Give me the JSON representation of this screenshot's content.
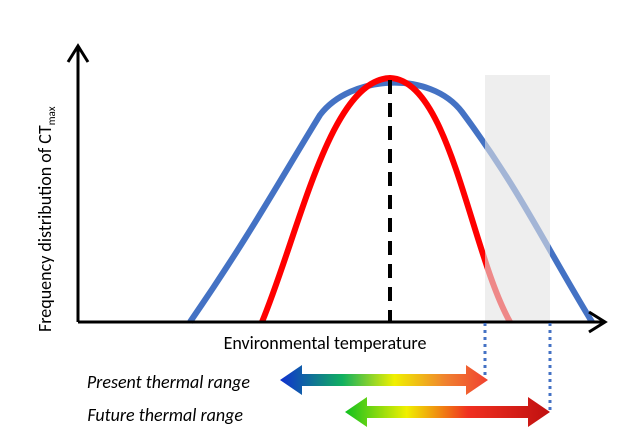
{
  "y_axis": {
    "label": "Frequency distribution of CT",
    "subscript": "max"
  },
  "x_axis": {
    "label": "Environmental temperature"
  },
  "ranges": {
    "present": "Present thermal range",
    "future": "Future thermal range"
  }
}
